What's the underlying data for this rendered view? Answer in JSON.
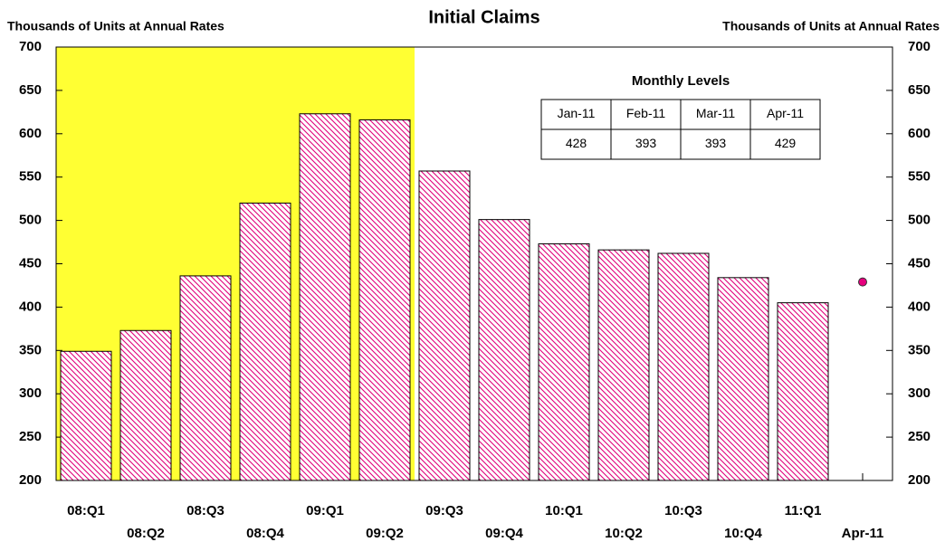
{
  "chart_data": {
    "type": "bar",
    "title": "Initial Claims",
    "y_label": "Thousands of Units at Annual Rates",
    "y2_label": "Thousands of Units at Annual Rates",
    "categories": [
      "08:Q1",
      "08:Q2",
      "08:Q3",
      "08:Q4",
      "09:Q1",
      "09:Q2",
      "09:Q3",
      "09:Q4",
      "10:Q1",
      "10:Q2",
      "10:Q3",
      "10:Q4",
      "11:Q1",
      "Apr-11"
    ],
    "series": [
      {
        "type": "bar",
        "color": "#e0007a",
        "values": [
          349,
          373,
          436,
          520,
          623,
          616,
          557,
          501,
          473,
          466,
          462,
          434,
          405,
          null
        ]
      },
      {
        "type": "point",
        "color": "#e6007e",
        "values": [
          null,
          null,
          null,
          null,
          null,
          null,
          null,
          null,
          null,
          null,
          null,
          null,
          null,
          429
        ]
      }
    ],
    "ylim": [
      200,
      700
    ],
    "yticks": [
      200,
      250,
      300,
      350,
      400,
      450,
      500,
      550,
      600,
      650,
      700
    ],
    "y2lim": [
      200,
      700
    ],
    "y2ticks": [
      200,
      250,
      300,
      350,
      400,
      450,
      500,
      550,
      600,
      650,
      700
    ],
    "shade": {
      "from": "08:Q1",
      "to": "09:Q2",
      "color": "#ffff33"
    },
    "table": {
      "title": "Monthly Levels",
      "header": [
        "Jan-11",
        "Feb-11",
        "Mar-11",
        "Apr-11"
      ],
      "values": [
        428,
        393,
        393,
        429
      ]
    }
  }
}
